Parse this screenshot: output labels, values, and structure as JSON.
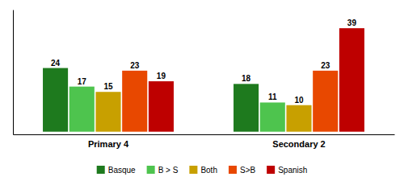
{
  "chart_data": {
    "type": "bar",
    "categories": [
      "Primary 4",
      "Secondary 2"
    ],
    "series": [
      {
        "name": "Basque",
        "color": "#1e7a1e",
        "values": [
          24,
          18
        ]
      },
      {
        "name": "B > S",
        "color": "#4ec44e",
        "values": [
          17,
          11
        ]
      },
      {
        "name": "Both",
        "color": "#c8a000",
        "values": [
          15,
          10
        ]
      },
      {
        "name": "S>B",
        "color": "#e84800",
        "values": [
          23,
          23
        ]
      },
      {
        "name": "Spanish",
        "color": "#be0000",
        "values": [
          19,
          39
        ]
      }
    ],
    "ylim": [
      -1,
      46
    ],
    "grid": false,
    "legend": "bottom",
    "data_labels": true,
    "tick_labels": "x"
  }
}
